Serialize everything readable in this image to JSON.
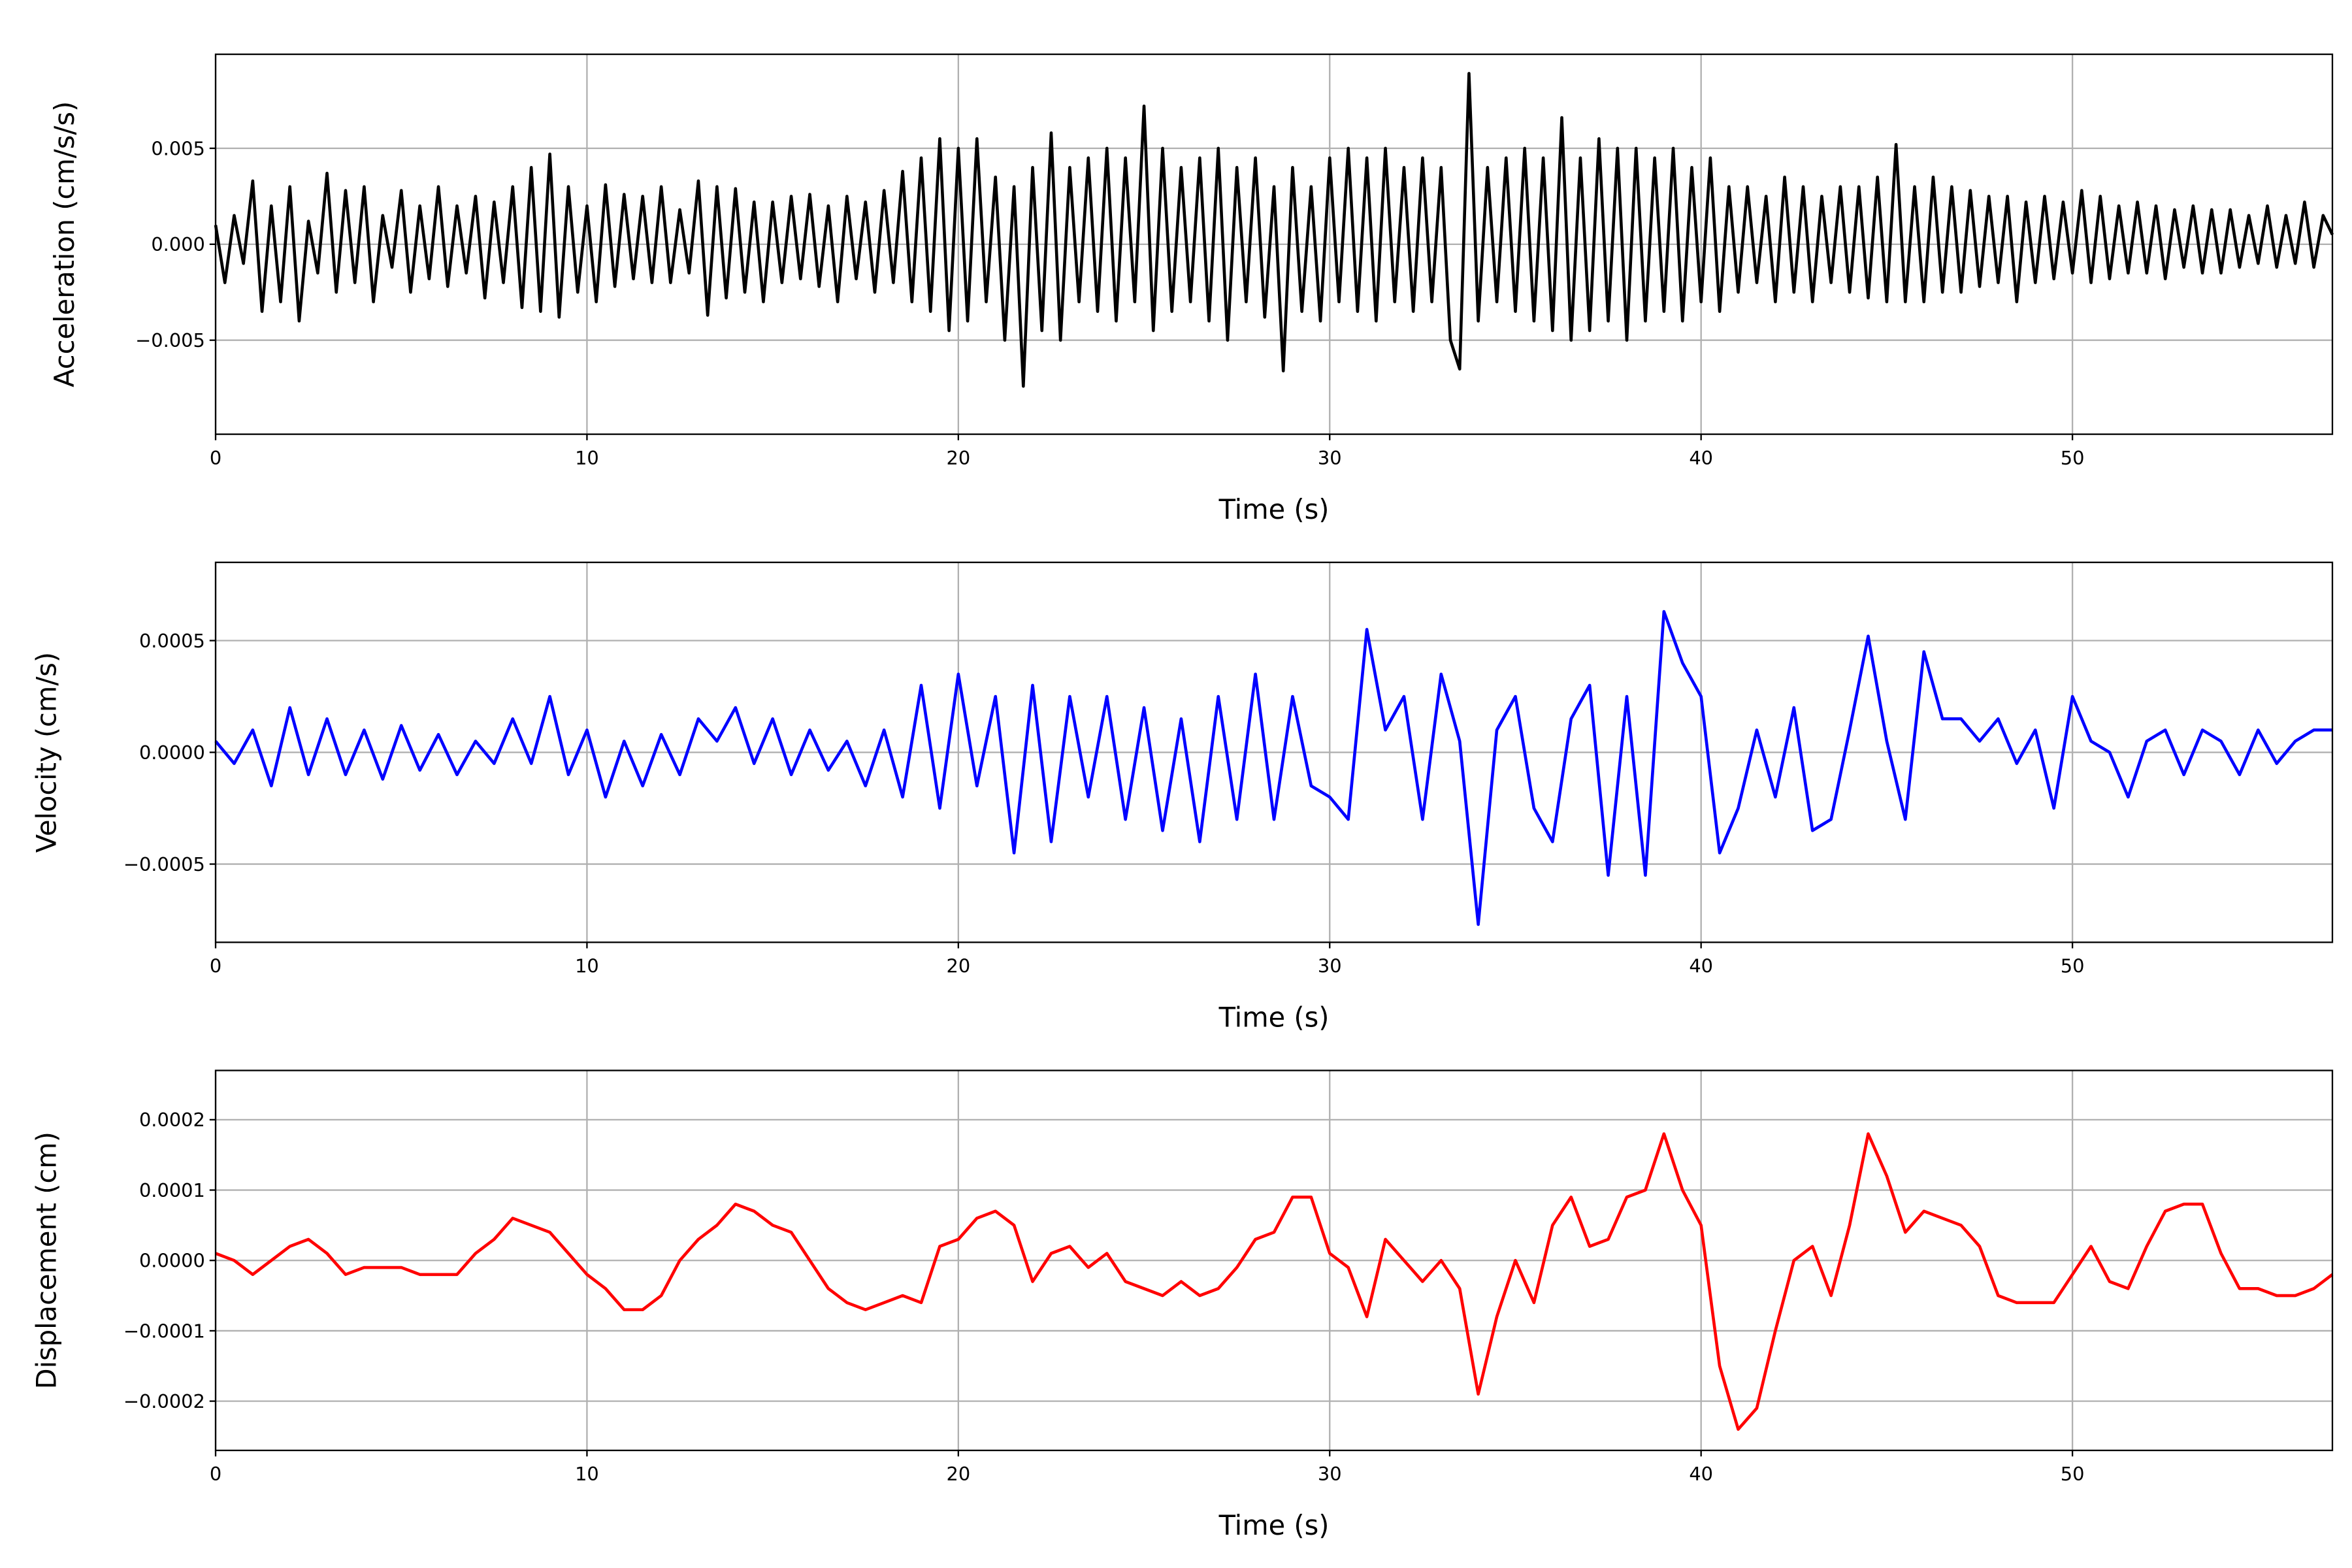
{
  "chart_data": [
    {
      "type": "line",
      "xlabel": "Time (s)",
      "ylabel": "Acceleration (cm/s/s)",
      "color": "#000000",
      "grid": true,
      "xlim": [
        0,
        57
      ],
      "xticks": [
        0,
        10,
        20,
        30,
        40,
        50
      ],
      "ylim": [
        -0.0099,
        0.0099
      ],
      "yticks": [
        {
          "value": -0.005,
          "label": "−0.005"
        },
        {
          "value": 0,
          "label": "0.000"
        },
        {
          "value": 0.005,
          "label": "0.005"
        }
      ],
      "x": [
        0,
        0.25,
        0.5,
        0.75,
        1,
        1.25,
        1.5,
        1.75,
        2,
        2.25,
        2.5,
        2.75,
        3,
        3.25,
        3.5,
        3.75,
        4,
        4.25,
        4.5,
        4.75,
        5,
        5.25,
        5.5,
        5.75,
        6,
        6.25,
        6.5,
        6.75,
        7,
        7.25,
        7.5,
        7.75,
        8,
        8.25,
        8.5,
        8.75,
        9,
        9.25,
        9.5,
        9.75,
        10,
        10.25,
        10.5,
        10.75,
        11,
        11.25,
        11.5,
        11.75,
        12,
        12.25,
        12.5,
        12.75,
        13,
        13.25,
        13.5,
        13.75,
        14,
        14.25,
        14.5,
        14.75,
        15,
        15.25,
        15.5,
        15.75,
        16,
        16.25,
        16.5,
        16.75,
        17,
        17.25,
        17.5,
        17.75,
        18,
        18.25,
        18.5,
        18.75,
        19,
        19.25,
        19.5,
        19.75,
        20,
        20.25,
        20.5,
        20.75,
        21,
        21.25,
        21.5,
        21.75,
        22,
        22.25,
        22.5,
        22.75,
        23,
        23.25,
        23.5,
        23.75,
        24,
        24.25,
        24.5,
        24.75,
        25,
        25.25,
        25.5,
        25.75,
        26,
        26.25,
        26.5,
        26.75,
        27,
        27.25,
        27.5,
        27.75,
        28,
        28.25,
        28.5,
        28.75,
        29,
        29.25,
        29.5,
        29.75,
        30,
        30.25,
        30.5,
        30.75,
        31,
        31.25,
        31.5,
        31.75,
        32,
        32.25,
        32.5,
        32.75,
        33,
        33.25,
        33.5,
        33.75,
        34,
        34.25,
        34.5,
        34.75,
        35,
        35.25,
        35.5,
        35.75,
        36,
        36.25,
        36.5,
        36.75,
        37,
        37.25,
        37.5,
        37.75,
        38,
        38.25,
        38.5,
        38.75,
        39,
        39.25,
        39.5,
        39.75,
        40,
        40.25,
        40.5,
        40.75,
        41,
        41.25,
        41.5,
        41.75,
        42,
        42.25,
        42.5,
        42.75,
        43,
        43.25,
        43.5,
        43.75,
        44,
        44.25,
        44.5,
        44.75,
        45,
        45.25,
        45.5,
        45.75,
        46,
        46.25,
        46.5,
        46.75,
        47,
        47.25,
        47.5,
        47.75,
        48,
        48.25,
        48.5,
        48.75,
        49,
        49.25,
        49.5,
        49.75,
        50,
        50.25,
        50.5,
        50.75,
        51,
        51.25,
        51.5,
        51.75,
        52,
        52.25,
        52.5,
        52.75,
        53,
        53.25,
        53.5,
        53.75,
        54,
        54.25,
        54.5,
        54.75,
        55,
        55.25,
        55.5,
        55.75,
        56,
        56.25,
        56.5,
        56.75,
        57
      ],
      "values": [
        0.001,
        -0.002,
        0.0015,
        -0.001,
        0.0033,
        -0.0035,
        0.002,
        -0.003,
        0.003,
        -0.004,
        0.0012,
        -0.0015,
        0.0037,
        -0.0025,
        0.0028,
        -0.002,
        0.003,
        -0.003,
        0.0015,
        -0.0012,
        0.0028,
        -0.0025,
        0.002,
        -0.0018,
        0.003,
        -0.0022,
        0.002,
        -0.0015,
        0.0025,
        -0.0028,
        0.0022,
        -0.002,
        0.003,
        -0.0033,
        0.004,
        -0.0035,
        0.0047,
        -0.0038,
        0.003,
        -0.0025,
        0.002,
        -0.003,
        0.0031,
        -0.0022,
        0.0026,
        -0.0018,
        0.0025,
        -0.002,
        0.003,
        -0.002,
        0.0018,
        -0.0015,
        0.0033,
        -0.0037,
        0.003,
        -0.0028,
        0.0029,
        -0.0025,
        0.0022,
        -0.003,
        0.0022,
        -0.002,
        0.0025,
        -0.0018,
        0.0026,
        -0.0022,
        0.002,
        -0.003,
        0.0025,
        -0.0018,
        0.0022,
        -0.0025,
        0.0028,
        -0.002,
        0.0038,
        -0.003,
        0.0045,
        -0.0035,
        0.0055,
        -0.0045,
        0.005,
        -0.004,
        0.0055,
        -0.003,
        0.0035,
        -0.005,
        0.003,
        -0.0074,
        0.004,
        -0.0045,
        0.0058,
        -0.005,
        0.004,
        -0.003,
        0.0045,
        -0.0035,
        0.005,
        -0.004,
        0.0045,
        -0.003,
        0.0072,
        -0.0045,
        0.005,
        -0.0035,
        0.004,
        -0.003,
        0.0045,
        -0.004,
        0.005,
        -0.005,
        0.004,
        -0.003,
        0.0045,
        -0.0038,
        0.003,
        -0.0066,
        0.004,
        -0.0035,
        0.003,
        -0.004,
        0.0045,
        -0.003,
        0.005,
        -0.0035,
        0.0045,
        -0.004,
        0.005,
        -0.003,
        0.004,
        -0.0035,
        0.0045,
        -0.003,
        0.004,
        -0.005,
        -0.0065,
        0.0089,
        -0.004,
        0.004,
        -0.003,
        0.0045,
        -0.0035,
        0.005,
        -0.004,
        0.0045,
        -0.0045,
        0.0066,
        -0.005,
        0.0045,
        -0.0045,
        0.0055,
        -0.004,
        0.005,
        -0.005,
        0.005,
        -0.004,
        0.0045,
        -0.0035,
        0.005,
        -0.004,
        0.004,
        -0.003,
        0.0045,
        -0.0035,
        0.003,
        -0.0025,
        0.003,
        -0.002,
        0.0025,
        -0.003,
        0.0035,
        -0.0025,
        0.003,
        -0.003,
        0.0025,
        -0.002,
        0.003,
        -0.0025,
        0.003,
        -0.0028,
        0.0035,
        -0.003,
        0.0052,
        -0.003,
        0.003,
        -0.003,
        0.0035,
        -0.0025,
        0.003,
        -0.0025,
        0.0028,
        -0.0022,
        0.0025,
        -0.002,
        0.0025,
        -0.003,
        0.0022,
        -0.002,
        0.0025,
        -0.0018,
        0.0022,
        -0.0015,
        0.0028,
        -0.002,
        0.0025,
        -0.0018,
        0.002,
        -0.0015,
        0.0022,
        -0.0015,
        0.002,
        -0.0018,
        0.0018,
        -0.0012,
        0.002,
        -0.0015,
        0.0018,
        -0.0015,
        0.0018,
        -0.0012,
        0.0015,
        -0.001,
        0.002,
        -0.0012,
        0.0015,
        -0.001,
        0.0022,
        -0.0012,
        0.0015,
        0.0005
      ]
    },
    {
      "type": "line",
      "xlabel": "Time (s)",
      "ylabel": "Velocity (cm/s)",
      "color": "#0000ff",
      "grid": true,
      "xlim": [
        0,
        57
      ],
      "xticks": [
        0,
        10,
        20,
        30,
        40,
        50
      ],
      "ylim": [
        -0.00085,
        0.00085
      ],
      "yticks": [
        {
          "value": -0.0005,
          "label": "−0.0005"
        },
        {
          "value": 0,
          "label": "0.0000"
        },
        {
          "value": 0.0005,
          "label": "0.0005"
        }
      ],
      "x": [
        0,
        0.5,
        1,
        1.5,
        2,
        2.5,
        3,
        3.5,
        4,
        4.5,
        5,
        5.5,
        6,
        6.5,
        7,
        7.5,
        8,
        8.5,
        9,
        9.5,
        10,
        10.5,
        11,
        11.5,
        12,
        12.5,
        13,
        13.5,
        14,
        14.5,
        15,
        15.5,
        16,
        16.5,
        17,
        17.5,
        18,
        18.5,
        19,
        19.5,
        20,
        20.5,
        21,
        21.5,
        22,
        22.5,
        23,
        23.5,
        24,
        24.5,
        25,
        25.5,
        26,
        26.5,
        27,
        27.5,
        28,
        28.5,
        29,
        29.5,
        30,
        30.5,
        31,
        31.5,
        32,
        32.5,
        33,
        33.5,
        34,
        34.5,
        35,
        35.5,
        36,
        36.5,
        37,
        37.5,
        38,
        38.5,
        39,
        39.5,
        40,
        40.5,
        41,
        41.5,
        42,
        42.5,
        43,
        43.5,
        44,
        44.5,
        45,
        45.5,
        46,
        46.5,
        47,
        47.5,
        48,
        48.5,
        49,
        49.5,
        50,
        50.5,
        51,
        51.5,
        52,
        52.5,
        53,
        53.5,
        54,
        54.5,
        55,
        55.5,
        56,
        56.5,
        57
      ],
      "values": [
        5e-05,
        -5e-05,
        0.0001,
        -0.00015,
        0.0002,
        -0.0001,
        0.00015,
        -0.0001,
        0.0001,
        -0.00012,
        0.00012,
        -8e-05,
        8e-05,
        -0.0001,
        5e-05,
        -5e-05,
        0.00015,
        -5e-05,
        0.00025,
        -0.0001,
        0.0001,
        -0.0002,
        5e-05,
        -0.00015,
        8e-05,
        -0.0001,
        0.00015,
        5e-05,
        0.0002,
        -5e-05,
        0.00015,
        -0.0001,
        0.0001,
        -8e-05,
        5e-05,
        -0.00015,
        0.0001,
        -0.0002,
        0.0003,
        -0.00025,
        0.00035,
        -0.00015,
        0.00025,
        -0.00045,
        0.0003,
        -0.0004,
        0.00025,
        -0.0002,
        0.00025,
        -0.0003,
        0.0002,
        -0.00035,
        0.00015,
        -0.0004,
        0.00025,
        -0.0003,
        0.00035,
        -0.0003,
        0.00025,
        -0.00015,
        -0.0002,
        -0.0003,
        0.00055,
        0.0001,
        0.00025,
        -0.0003,
        0.00035,
        5e-05,
        -0.00077,
        0.0001,
        0.00025,
        -0.00025,
        -0.0004,
        0.00015,
        0.0003,
        -0.00055,
        0.00025,
        -0.00055,
        0.00063,
        0.0004,
        0.00025,
        -0.00045,
        -0.00025,
        0.0001,
        -0.0002,
        0.0002,
        -0.00035,
        -0.0003,
        0.0001,
        0.00052,
        5e-05,
        -0.0003,
        0.00045,
        0.00015,
        0.00015,
        5e-05,
        0.00015,
        -5e-05,
        0.0001,
        -0.00025,
        0.00025,
        5e-05,
        0,
        -0.0002,
        5e-05,
        0.0001,
        -0.0001,
        0.0001,
        5e-05,
        -0.0001,
        0.0001,
        -5e-05,
        5e-05,
        0.0001,
        0.0001
      ]
    },
    {
      "type": "line",
      "xlabel": "Time (s)",
      "ylabel": "Displacement (cm)",
      "color": "#ff0000",
      "grid": true,
      "xlim": [
        0,
        57
      ],
      "xticks": [
        0,
        10,
        20,
        30,
        40,
        50
      ],
      "ylim": [
        -0.00027,
        0.00027
      ],
      "yticks": [
        {
          "value": -0.0002,
          "label": "−0.0002"
        },
        {
          "value": -0.0001,
          "label": "−0.0001"
        },
        {
          "value": 0,
          "label": "0.0000"
        },
        {
          "value": 0.0001,
          "label": "0.0001"
        },
        {
          "value": 0.0002,
          "label": "0.0002"
        }
      ],
      "x": [
        0,
        0.5,
        1,
        1.5,
        2,
        2.5,
        3,
        3.5,
        4,
        4.5,
        5,
        5.5,
        6,
        6.5,
        7,
        7.5,
        8,
        8.5,
        9,
        9.5,
        10,
        10.5,
        11,
        11.5,
        12,
        12.5,
        13,
        13.5,
        14,
        14.5,
        15,
        15.5,
        16,
        16.5,
        17,
        17.5,
        18,
        18.5,
        19,
        19.5,
        20,
        20.5,
        21,
        21.5,
        22,
        22.5,
        23,
        23.5,
        24,
        24.5,
        25,
        25.5,
        26,
        26.5,
        27,
        27.5,
        28,
        28.5,
        29,
        29.5,
        30,
        30.5,
        31,
        31.5,
        32,
        32.5,
        33,
        33.5,
        34,
        34.5,
        35,
        35.5,
        36,
        36.5,
        37,
        37.5,
        38,
        38.5,
        39,
        39.5,
        40,
        40.5,
        41,
        41.5,
        42,
        42.5,
        43,
        43.5,
        44,
        44.5,
        45,
        45.5,
        46,
        46.5,
        47,
        47.5,
        48,
        48.5,
        49,
        49.5,
        50,
        50.5,
        51,
        51.5,
        52,
        52.5,
        53,
        53.5,
        54,
        54.5,
        55,
        55.5,
        56,
        56.5,
        57
      ],
      "values": [
        1e-05,
        0,
        -2e-05,
        0,
        2e-05,
        3e-05,
        1e-05,
        -2e-05,
        -1e-05,
        -1e-05,
        -1e-05,
        -2e-05,
        -2e-05,
        -2e-05,
        1e-05,
        3e-05,
        6e-05,
        5e-05,
        4e-05,
        1e-05,
        -2e-05,
        -4e-05,
        -7e-05,
        -7e-05,
        -5e-05,
        0,
        3e-05,
        5e-05,
        8e-05,
        7e-05,
        5e-05,
        4e-05,
        0,
        -4e-05,
        -6e-05,
        -7e-05,
        -6e-05,
        -5e-05,
        -6e-05,
        2e-05,
        3e-05,
        6e-05,
        7e-05,
        5e-05,
        -3e-05,
        1e-05,
        2e-05,
        -1e-05,
        1e-05,
        -3e-05,
        -4e-05,
        -5e-05,
        -3e-05,
        -5e-05,
        -4e-05,
        -1e-05,
        3e-05,
        4e-05,
        9e-05,
        9e-05,
        1e-05,
        -1e-05,
        -8e-05,
        3e-05,
        0,
        -3e-05,
        0,
        -4e-05,
        -0.00019,
        -8e-05,
        0,
        -6e-05,
        5e-05,
        9e-05,
        2e-05,
        3e-05,
        9e-05,
        0.0001,
        0.00018,
        0.0001,
        5e-05,
        -0.00015,
        -0.00024,
        -0.00021,
        -0.0001,
        0,
        2e-05,
        -5e-05,
        5e-05,
        0.00018,
        0.00012,
        4e-05,
        7e-05,
        6e-05,
        5e-05,
        2e-05,
        -5e-05,
        -6e-05,
        -6e-05,
        -6e-05,
        -2e-05,
        2e-05,
        -3e-05,
        -4e-05,
        2e-05,
        7e-05,
        8e-05,
        8e-05,
        1e-05,
        -4e-05,
        -4e-05,
        -5e-05,
        -5e-05,
        -4e-05,
        -2e-05
      ]
    }
  ]
}
